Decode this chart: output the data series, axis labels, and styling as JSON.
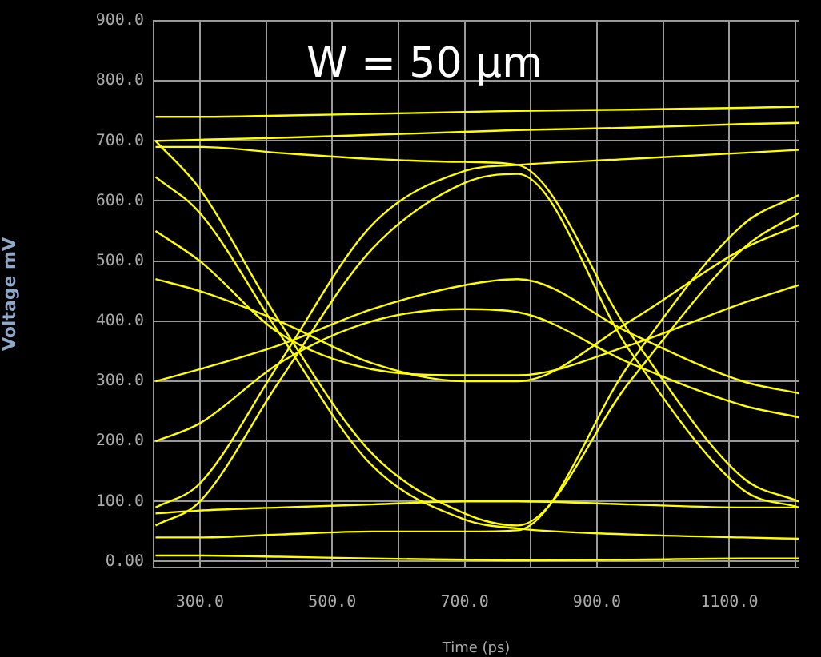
{
  "chart_data": {
    "type": "line",
    "title": "W = 50 µm",
    "xlabel": "Time (ps)",
    "ylabel": "Voltage mV",
    "x": [
      233,
      300,
      420,
      560,
      700,
      780,
      950,
      1120,
      1205
    ],
    "series": [
      {
        "color": "#ffff00",
        "values": [
          700,
          702,
          705,
          710,
          715,
          718,
          722,
          728,
          730
        ]
      },
      {
        "color": "#ffff00",
        "values": [
          10,
          10,
          8,
          5,
          3,
          2,
          3,
          5,
          5
        ]
      },
      {
        "color": "#ffff00",
        "values": [
          60,
          100,
          300,
          520,
          630,
          645,
          350,
          120,
          90
        ]
      },
      {
        "color": "#ffff00",
        "values": [
          700,
          620,
          400,
          180,
          80,
          60,
          300,
          520,
          580
        ]
      },
      {
        "color": "#ffff00",
        "values": [
          690,
          690,
          680,
          670,
          665,
          660,
          380,
          140,
          100
        ]
      },
      {
        "color": "#ffff00",
        "values": [
          40,
          40,
          45,
          50,
          50,
          52,
          330,
          560,
          610
        ]
      },
      {
        "color": "#ffff00",
        "values": [
          640,
          580,
          380,
          160,
          70,
          55,
          45,
          40,
          38
        ]
      },
      {
        "color": "#ffff00",
        "values": [
          90,
          130,
          330,
          560,
          650,
          660,
          670,
          680,
          685
        ]
      },
      {
        "color": "#ffff00",
        "values": [
          550,
          500,
          380,
          320,
          310,
          310,
          360,
          430,
          460
        ]
      },
      {
        "color": "#ffff00",
        "values": [
          200,
          230,
          330,
          400,
          420,
          415,
          330,
          260,
          240
        ]
      },
      {
        "color": "#ffff00",
        "values": [
          470,
          450,
          400,
          330,
          300,
          300,
          400,
          520,
          560
        ]
      },
      {
        "color": "#ffff00",
        "values": [
          300,
          320,
          360,
          420,
          460,
          470,
          380,
          300,
          280
        ]
      },
      {
        "color": "#ffff00",
        "values": [
          740,
          740,
          742,
          745,
          748,
          750,
          752,
          755,
          757
        ]
      },
      {
        "color": "#ffff00",
        "values": [
          80,
          85,
          90,
          95,
          100,
          100,
          95,
          90,
          90
        ]
      }
    ],
    "xlim": [
      230,
      1205
    ],
    "xticks": [
      {
        "value": 300,
        "label": "300.0"
      },
      {
        "value": 400,
        "label": null
      },
      {
        "value": 500,
        "label": "500.0"
      },
      {
        "value": 600,
        "label": null
      },
      {
        "value": 700,
        "label": "700.0"
      },
      {
        "value": 800,
        "label": null
      },
      {
        "value": 900,
        "label": "900.0"
      },
      {
        "value": 1000,
        "label": null
      },
      {
        "value": 1100,
        "label": "1100.0"
      },
      {
        "value": 1200,
        "label": null
      }
    ],
    "ylim": [
      -10,
      900
    ],
    "yticks": [
      {
        "value": 0,
        "label": "0.00"
      },
      {
        "value": 100,
        "label": "100.0"
      },
      {
        "value": 200,
        "label": "200.0"
      },
      {
        "value": 300,
        "label": "300.0"
      },
      {
        "value": 400,
        "label": "400.0"
      },
      {
        "value": 500,
        "label": "500.0"
      },
      {
        "value": 600,
        "label": "600.0"
      },
      {
        "value": 700,
        "label": "700.0"
      },
      {
        "value": 800,
        "label": "800.0"
      },
      {
        "value": 900,
        "label": "900.0"
      }
    ],
    "grid": true,
    "legend": false,
    "marker": "none",
    "line_style": "solid"
  }
}
